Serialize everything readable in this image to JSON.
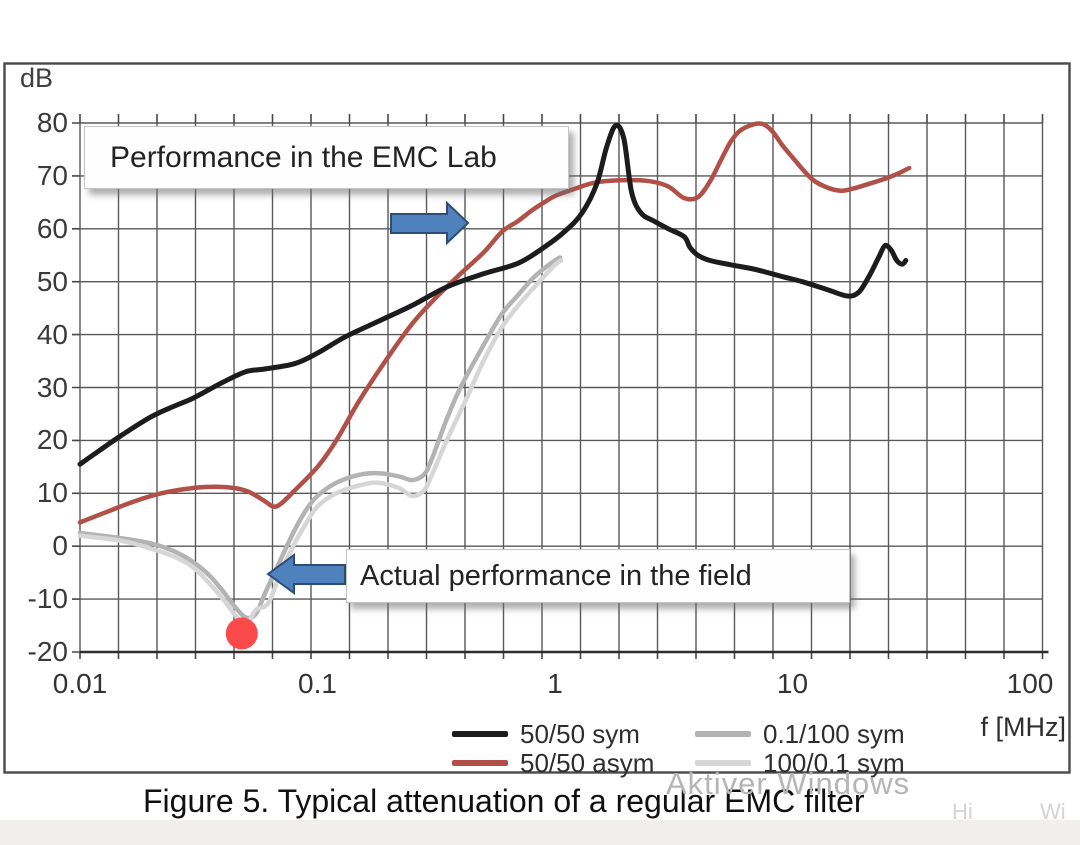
{
  "figure": {
    "caption": "Figure 5. Typical attenuation of a regular EMC filter",
    "watermark": "Aktiver Windows",
    "watermark_fragments": [
      "Hi",
      "Wi"
    ]
  },
  "chart_data": {
    "type": "line",
    "x_scale": "log",
    "xlabel": "f [MHz]",
    "ylabel": "dB",
    "xlim": [
      0.01,
      100
    ],
    "ylim": [
      -20,
      80
    ],
    "x_ticks": [
      "0.01",
      "0.1",
      "1",
      "10",
      "100"
    ],
    "y_ticks": [
      80,
      70,
      60,
      50,
      40,
      30,
      20,
      10,
      0,
      -10,
      -20
    ],
    "grid": true,
    "legend_position": "bottom",
    "series": [
      {
        "name": "50/50 sym",
        "color": "#1c1c1c",
        "width": 5,
        "z": 4,
        "points": [
          [
            0.01,
            15.5
          ],
          [
            0.012,
            18
          ],
          [
            0.015,
            21
          ],
          [
            0.02,
            24.5
          ],
          [
            0.025,
            26.5
          ],
          [
            0.03,
            28
          ],
          [
            0.04,
            31
          ],
          [
            0.05,
            33
          ],
          [
            0.06,
            33.5
          ],
          [
            0.08,
            34.5
          ],
          [
            0.1,
            36.5
          ],
          [
            0.13,
            39.5
          ],
          [
            0.18,
            42.5
          ],
          [
            0.25,
            45.5
          ],
          [
            0.35,
            49
          ],
          [
            0.5,
            51.5
          ],
          [
            0.7,
            53.5
          ],
          [
            0.9,
            56.5
          ],
          [
            1.1,
            59.5
          ],
          [
            1.3,
            63
          ],
          [
            1.5,
            68.5
          ],
          [
            1.65,
            75.5
          ],
          [
            1.8,
            79.5
          ],
          [
            1.95,
            77
          ],
          [
            2.1,
            67
          ],
          [
            2.3,
            63
          ],
          [
            2.6,
            61.5
          ],
          [
            3,
            60
          ],
          [
            3.5,
            58.5
          ],
          [
            3.7,
            56.5
          ],
          [
            4,
            55
          ],
          [
            4.5,
            54
          ],
          [
            5.5,
            53.2
          ],
          [
            7,
            52.3
          ],
          [
            9,
            51
          ],
          [
            11,
            50
          ],
          [
            14,
            48.5
          ],
          [
            17,
            47.3
          ],
          [
            19,
            48
          ],
          [
            21,
            51
          ],
          [
            23,
            54.5
          ],
          [
            24.5,
            56.8
          ],
          [
            26,
            56
          ],
          [
            27.5,
            54
          ],
          [
            29,
            53.3
          ],
          [
            30,
            54
          ]
        ]
      },
      {
        "name": "50/50 asym",
        "color": "#b05048",
        "width": 4.5,
        "z": 3,
        "points": [
          [
            0.01,
            4.5
          ],
          [
            0.013,
            6.5
          ],
          [
            0.017,
            8.5
          ],
          [
            0.022,
            10
          ],
          [
            0.03,
            11
          ],
          [
            0.04,
            11.2
          ],
          [
            0.05,
            10.5
          ],
          [
            0.06,
            8.5
          ],
          [
            0.065,
            7.5
          ],
          [
            0.07,
            8
          ],
          [
            0.08,
            10.5
          ],
          [
            0.1,
            15
          ],
          [
            0.12,
            20
          ],
          [
            0.15,
            27.5
          ],
          [
            0.2,
            36
          ],
          [
            0.25,
            42
          ],
          [
            0.3,
            46
          ],
          [
            0.4,
            51.5
          ],
          [
            0.5,
            55.5
          ],
          [
            0.6,
            59.5
          ],
          [
            0.7,
            61.5
          ],
          [
            0.8,
            63.5
          ],
          [
            0.9,
            65
          ],
          [
            1.0,
            66.2
          ],
          [
            1.2,
            67.5
          ],
          [
            1.5,
            68.8
          ],
          [
            2,
            69.2
          ],
          [
            2.5,
            69
          ],
          [
            3,
            68
          ],
          [
            3.5,
            65.8
          ],
          [
            4,
            66
          ],
          [
            4.5,
            69
          ],
          [
            5,
            73
          ],
          [
            5.5,
            76.5
          ],
          [
            6,
            78.5
          ],
          [
            6.8,
            79.7
          ],
          [
            7.5,
            79.8
          ],
          [
            8.2,
            78.5
          ],
          [
            9,
            76
          ],
          [
            10,
            73.5
          ],
          [
            12,
            69.5
          ],
          [
            14,
            67.8
          ],
          [
            16,
            67.2
          ],
          [
            18,
            67.6
          ],
          [
            21,
            68.5
          ],
          [
            25,
            69.6
          ],
          [
            28,
            70.5
          ],
          [
            31,
            71.5
          ]
        ]
      },
      {
        "name": "0.1/100 sym",
        "color": "#b3b3b3",
        "width": 4.5,
        "z": 1,
        "points": [
          [
            0.01,
            2.5
          ],
          [
            0.015,
            1.5
          ],
          [
            0.02,
            0.5
          ],
          [
            0.025,
            -1
          ],
          [
            0.03,
            -3
          ],
          [
            0.035,
            -5.5
          ],
          [
            0.04,
            -8.5
          ],
          [
            0.045,
            -11.5
          ],
          [
            0.05,
            -13.5
          ],
          [
            0.055,
            -12.8
          ],
          [
            0.06,
            -9
          ],
          [
            0.07,
            -2.5
          ],
          [
            0.08,
            3
          ],
          [
            0.09,
            7
          ],
          [
            0.1,
            9.5
          ],
          [
            0.12,
            12
          ],
          [
            0.15,
            13.5
          ],
          [
            0.18,
            13.8
          ],
          [
            0.22,
            13.2
          ],
          [
            0.25,
            12.5
          ],
          [
            0.28,
            13.5
          ],
          [
            0.3,
            16
          ],
          [
            0.35,
            24
          ],
          [
            0.4,
            30
          ],
          [
            0.5,
            38
          ],
          [
            0.6,
            44
          ],
          [
            0.7,
            47.5
          ],
          [
            0.8,
            50.5
          ],
          [
            0.9,
            52.5
          ],
          [
            1.0,
            54
          ],
          [
            1.05,
            54.6
          ]
        ]
      },
      {
        "name": "100/0.1 sym",
        "color": "#d6d6d6",
        "width": 4.5,
        "z": 2,
        "points": [
          [
            0.01,
            2
          ],
          [
            0.015,
            1
          ],
          [
            0.02,
            -0.5
          ],
          [
            0.025,
            -2
          ],
          [
            0.03,
            -4
          ],
          [
            0.035,
            -7
          ],
          [
            0.04,
            -10
          ],
          [
            0.045,
            -13
          ],
          [
            0.05,
            -14.8
          ],
          [
            0.055,
            -12
          ],
          [
            0.062,
            -10.8
          ],
          [
            0.07,
            -5
          ],
          [
            0.08,
            0.5
          ],
          [
            0.09,
            4.5
          ],
          [
            0.1,
            7.5
          ],
          [
            0.12,
            10
          ],
          [
            0.15,
            11.5
          ],
          [
            0.18,
            12
          ],
          [
            0.22,
            11
          ],
          [
            0.25,
            9.5
          ],
          [
            0.28,
            10.5
          ],
          [
            0.3,
            13
          ],
          [
            0.35,
            20
          ],
          [
            0.42,
            27.5
          ],
          [
            0.5,
            35
          ],
          [
            0.6,
            41.5
          ],
          [
            0.7,
            45.5
          ],
          [
            0.8,
            48.5
          ],
          [
            0.9,
            51
          ],
          [
            1.0,
            53.2
          ],
          [
            1.06,
            54
          ]
        ]
      }
    ],
    "annotations": {
      "lab_box": {
        "text": "Performance in the EMC Lab"
      },
      "field_box": {
        "text": "Actual performance in the field"
      },
      "arrows": [
        {
          "points_to": "right",
          "color": "#4f81bd",
          "outline": "#2c4d75"
        },
        {
          "points_to": "left",
          "color": "#4f81bd",
          "outline": "#2c4d75"
        }
      ],
      "marker": {
        "f": 0.048,
        "dB": -16.5,
        "color": "#fb4a4a",
        "radius": 16
      }
    }
  }
}
